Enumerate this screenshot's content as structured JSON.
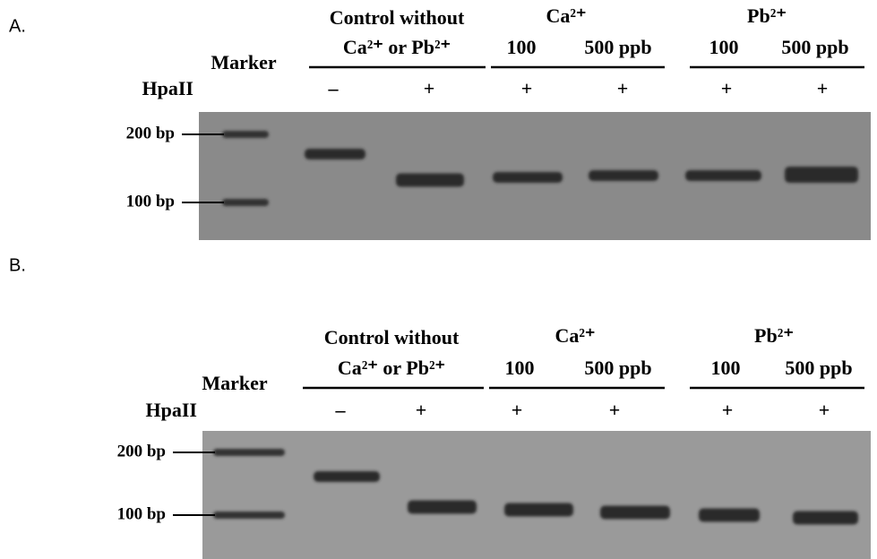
{
  "panels": [
    {
      "label": "A.",
      "marker": "Marker",
      "enzyme": "HpaII",
      "control": [
        "Control without",
        "Ca²⁺ or Pb²⁺"
      ],
      "groups": [
        {
          "name": "Ca²⁺",
          "doses": [
            "100",
            "500 ppb"
          ]
        },
        {
          "name": "Pb²⁺",
          "doses": [
            "100",
            "500 ppb"
          ]
        }
      ],
      "treatment": [
        "–",
        "+",
        "+",
        "+",
        "+",
        "+"
      ],
      "size_markers": [
        "200 bp",
        "100 bp"
      ]
    },
    {
      "label": "B.",
      "marker": "Marker",
      "enzyme": "HpaII",
      "control": [
        "Control without",
        "Ca²⁺ or Pb²⁺"
      ],
      "groups": [
        {
          "name": "Ca²⁺",
          "doses": [
            "100",
            "500 ppb"
          ]
        },
        {
          "name": "Pb²⁺",
          "doses": [
            "100",
            "500 ppb"
          ]
        }
      ],
      "treatment": [
        "–",
        "+",
        "+",
        "+",
        "+",
        "+"
      ],
      "size_markers": [
        "200 bp",
        "100 bp"
      ]
    }
  ]
}
